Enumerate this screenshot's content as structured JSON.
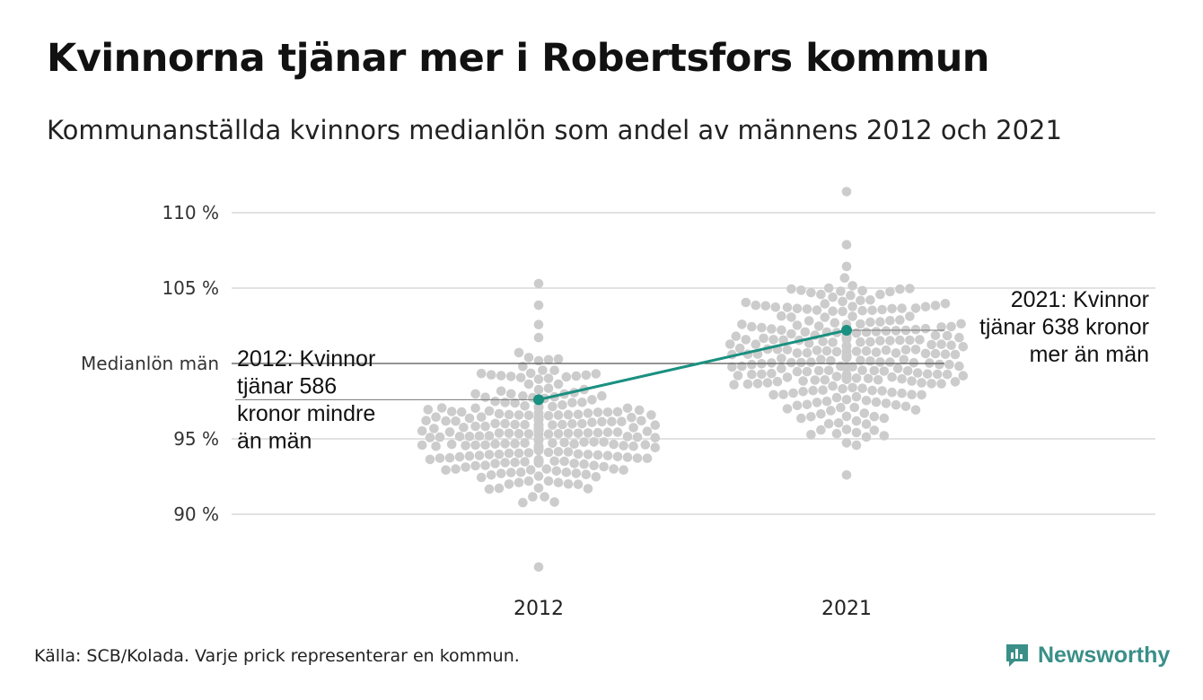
{
  "title": "Kvinnorna tjänar mer i Robertsfors kommun",
  "subtitle": "Kommunanställda kvinnors medianlön som andel av männens 2012 och 2021",
  "source": "Källa: SCB/Kolada. Varje prick representerar en kommun.",
  "brand": {
    "name": "Newsworthy",
    "icon": "newsworthy-chart-bubble-icon",
    "color": "#3a8f88"
  },
  "colors": {
    "dots": "#cccccc",
    "highlight": "#1a9080",
    "grid": "#e2e2e2",
    "reference": "#555555"
  },
  "chart_data": {
    "type": "scatter",
    "categories": [
      "2012",
      "2021"
    ],
    "ylim": [
      86.5,
      111.5
    ],
    "yticks": [
      {
        "value": 90,
        "label": "90 %"
      },
      {
        "value": 95,
        "label": "95 %"
      },
      {
        "value": 105,
        "label": "105 %"
      },
      {
        "value": 110,
        "label": "110 %"
      }
    ],
    "reference_line": {
      "value": 100,
      "label": "Medianlön män"
    },
    "distributions": [
      {
        "category": "2012",
        "n": 290,
        "center": 95.3,
        "spread": 2.2,
        "min": 86.5,
        "max": 105.3
      },
      {
        "category": "2021",
        "n": 290,
        "center": 100.8,
        "spread": 2.3,
        "min": 92.6,
        "max": 111.4
      }
    ],
    "highlight": {
      "name": "Robertsfors",
      "values": [
        97.6,
        102.2
      ],
      "annotations": [
        {
          "category": "2012",
          "lines": [
            "2012: Kvinnor",
            "tjänar 586",
            "kronor mindre",
            "än män"
          ]
        },
        {
          "category": "2021",
          "lines": [
            "2021: Kvinnor",
            "tjänar 638 kronor",
            "mer än män"
          ]
        }
      ]
    }
  }
}
